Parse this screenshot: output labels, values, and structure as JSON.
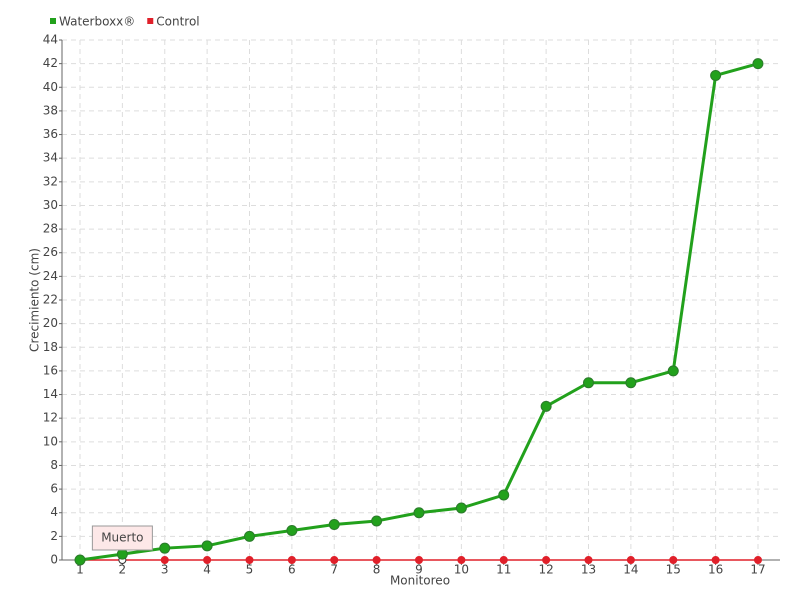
{
  "chart_data": {
    "type": "line",
    "x_label": "Monitoreo",
    "y_label": "Crecimiento (cm)",
    "categories": [
      "1",
      "2",
      "3",
      "4",
      "5",
      "6",
      "7",
      "8",
      "9",
      "10",
      "11",
      "12",
      "13",
      "14",
      "15",
      "16",
      "17"
    ],
    "series": [
      {
        "name": "Waterboxx®",
        "color": "#22a11c",
        "values": [
          0,
          0.5,
          1,
          1.2,
          2,
          2.5,
          3,
          3.3,
          4,
          4.4,
          5.5,
          13,
          15,
          15,
          16,
          41,
          42
        ]
      },
      {
        "name": "Control",
        "color": "#e0202a",
        "values": [
          0,
          0,
          0,
          0,
          0,
          0,
          0,
          0,
          0,
          0,
          0,
          0,
          0,
          0,
          0,
          0,
          0
        ]
      }
    ],
    "annotation": "Muerto",
    "ylim": [
      0,
      44
    ],
    "yticks": [
      0,
      2,
      4,
      6,
      8,
      10,
      12,
      14,
      16,
      18,
      20,
      22,
      24,
      26,
      28,
      30,
      32,
      34,
      36,
      38,
      40,
      42,
      44
    ],
    "grid": true,
    "legend": "top-left"
  }
}
